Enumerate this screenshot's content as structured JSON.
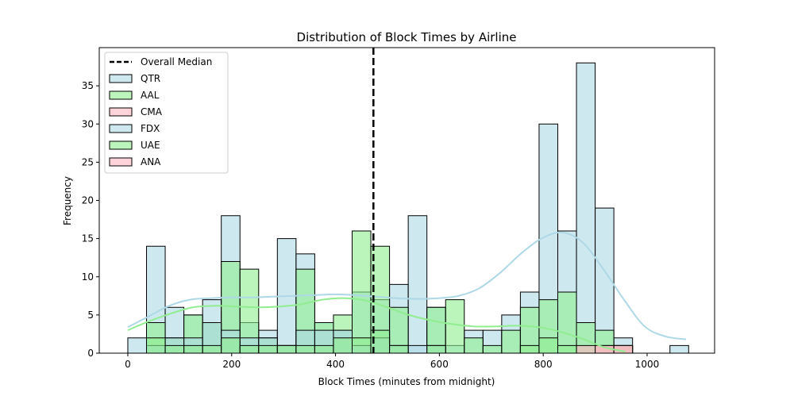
{
  "chart_data": {
    "type": "bar",
    "title": "Distribution of Block Times by Airline",
    "xlabel": "Block Times (minutes from midnight)",
    "ylabel": "Frequency",
    "xlim": [
      -55,
      1130
    ],
    "ylim": [
      0,
      40
    ],
    "x_ticks": [
      0,
      200,
      400,
      600,
      800,
      1000
    ],
    "y_ticks": [
      0,
      5,
      10,
      15,
      20,
      25,
      30,
      35
    ],
    "bin_width": 36,
    "bin_starts": [
      0,
      36,
      72,
      108,
      144,
      180,
      216,
      252,
      288,
      324,
      360,
      396,
      432,
      468,
      504,
      540,
      576,
      612,
      648,
      684,
      720,
      756,
      792,
      828,
      864,
      900,
      936,
      972,
      1008,
      1044
    ],
    "overall_median": 473,
    "grid": false,
    "legend_position": "upper left",
    "series": [
      {
        "name": "QTR",
        "color": "#ADD8E6",
        "values": [
          2,
          14,
          6,
          5,
          7,
          18,
          4,
          3,
          15,
          13,
          4,
          3,
          8,
          7,
          9,
          18,
          6,
          1,
          3,
          3,
          5,
          8,
          30,
          16,
          38,
          19,
          2,
          0,
          0,
          1
        ],
        "kde": [
          3.4,
          4.8,
          6.2,
          7.0,
          7.2,
          7.3,
          7.3,
          7.4,
          7.5,
          7.6,
          7.7,
          7.6,
          7.4,
          7.2,
          7.1,
          7.2,
          7.5,
          8.5,
          10.5,
          13.0,
          15.0,
          15.8,
          14.5,
          11.0,
          7.0,
          3.5,
          2.2,
          1.8
        ]
      },
      {
        "name": "AAL",
        "color": "#90EE90",
        "values": [
          0,
          4,
          2,
          5,
          4,
          12,
          11,
          2,
          1,
          11,
          4,
          5,
          16,
          14,
          6,
          0,
          6,
          7,
          2,
          1,
          3,
          6,
          7,
          8,
          4,
          3,
          1,
          0,
          0,
          0
        ],
        "kde": [
          3.0,
          4.2,
          5.2,
          6.0,
          6.2,
          6.1,
          6.0,
          6.1,
          6.4,
          7.0,
          7.2,
          6.9,
          6.0,
          5.0,
          4.3,
          3.8,
          3.5,
          3.5,
          3.6,
          3.4,
          2.8,
          1.9,
          0.8,
          0.2
        ]
      },
      {
        "name": "CMA",
        "color": "#FFB6C1",
        "values": [
          0,
          0,
          0,
          0,
          0,
          0,
          0,
          0,
          0,
          0,
          0,
          0,
          0,
          0,
          0,
          0,
          0,
          0,
          0,
          0,
          0,
          0,
          0,
          0,
          0,
          1,
          1,
          0,
          0,
          0
        ]
      },
      {
        "name": "FDX",
        "color": "#ADD8E6",
        "values": [
          0,
          1,
          2,
          2,
          4,
          3,
          2,
          2,
          1,
          3,
          3,
          3,
          1,
          2,
          1,
          1,
          1,
          0,
          0,
          0,
          0,
          0,
          0,
          0,
          0,
          0,
          0,
          0,
          0,
          0
        ]
      },
      {
        "name": "UAE",
        "color": "#90EE90",
        "values": [
          0,
          2,
          1,
          1,
          1,
          2,
          1,
          1,
          1,
          1,
          1,
          2,
          2,
          3,
          1,
          0,
          1,
          0,
          0,
          0,
          0,
          1,
          2,
          1,
          0,
          0,
          0,
          0,
          0,
          0
        ]
      },
      {
        "name": "ANA",
        "color": "#FFB6C1",
        "values": [
          0,
          0,
          0,
          0,
          0,
          0,
          0,
          0,
          0,
          0,
          0,
          0,
          0,
          0,
          0,
          0,
          0,
          0,
          0,
          0,
          0,
          0,
          0,
          0,
          1,
          1,
          1,
          0,
          0,
          0
        ]
      }
    ],
    "legend": [
      {
        "label": "Overall Median",
        "kind": "line"
      },
      {
        "label": "QTR",
        "kind": "patch",
        "color": "#ADD8E6"
      },
      {
        "label": "AAL",
        "kind": "patch",
        "color": "#90EE90"
      },
      {
        "label": "CMA",
        "kind": "patch",
        "color": "#FFB6C1"
      },
      {
        "label": "FDX",
        "kind": "patch",
        "color": "#ADD8E6"
      },
      {
        "label": "UAE",
        "kind": "patch",
        "color": "#90EE90"
      },
      {
        "label": "ANA",
        "kind": "patch",
        "color": "#FFB6C1"
      }
    ]
  }
}
